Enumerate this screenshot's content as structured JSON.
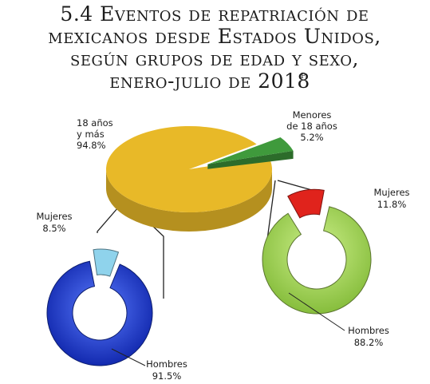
{
  "title": {
    "lines": [
      "5.4 Eventos de repatriación de",
      "mexicanos desde Estados Unidos,",
      "según grupos de edad y sexo,",
      "enero-julio de 2018"
    ],
    "superscript": "p"
  },
  "chart_data": [
    {
      "type": "pie",
      "name": "age",
      "categories": [
        "18 años y más",
        "Menores de 18 años"
      ],
      "values": [
        94.8,
        5.2
      ],
      "labels": {
        "adults": [
          "18 años",
          "y más",
          "94.8%"
        ],
        "minors": [
          "Menores",
          "de 18 años",
          "5.2%"
        ]
      },
      "colors": [
        "#e8b928",
        "#3f9a3c"
      ]
    },
    {
      "type": "pie",
      "name": "adults-by-sex",
      "categories": [
        "Hombres",
        "Mujeres"
      ],
      "values": [
        91.5,
        8.5
      ],
      "labels": {
        "hombres": [
          "Hombres",
          "91.5%"
        ],
        "mujeres": [
          "Mujeres",
          "8.5%"
        ]
      },
      "colors": [
        "#1737c8",
        "#8fd3ec"
      ]
    },
    {
      "type": "pie",
      "name": "minors-by-sex",
      "categories": [
        "Hombres",
        "Mujeres"
      ],
      "values": [
        88.2,
        11.8
      ],
      "labels": {
        "hombres": [
          "Hombres",
          "88.2%"
        ],
        "mujeres": [
          "Mujeres",
          "11.8%"
        ]
      },
      "colors": [
        "#a6d455",
        "#e0231c"
      ]
    }
  ]
}
